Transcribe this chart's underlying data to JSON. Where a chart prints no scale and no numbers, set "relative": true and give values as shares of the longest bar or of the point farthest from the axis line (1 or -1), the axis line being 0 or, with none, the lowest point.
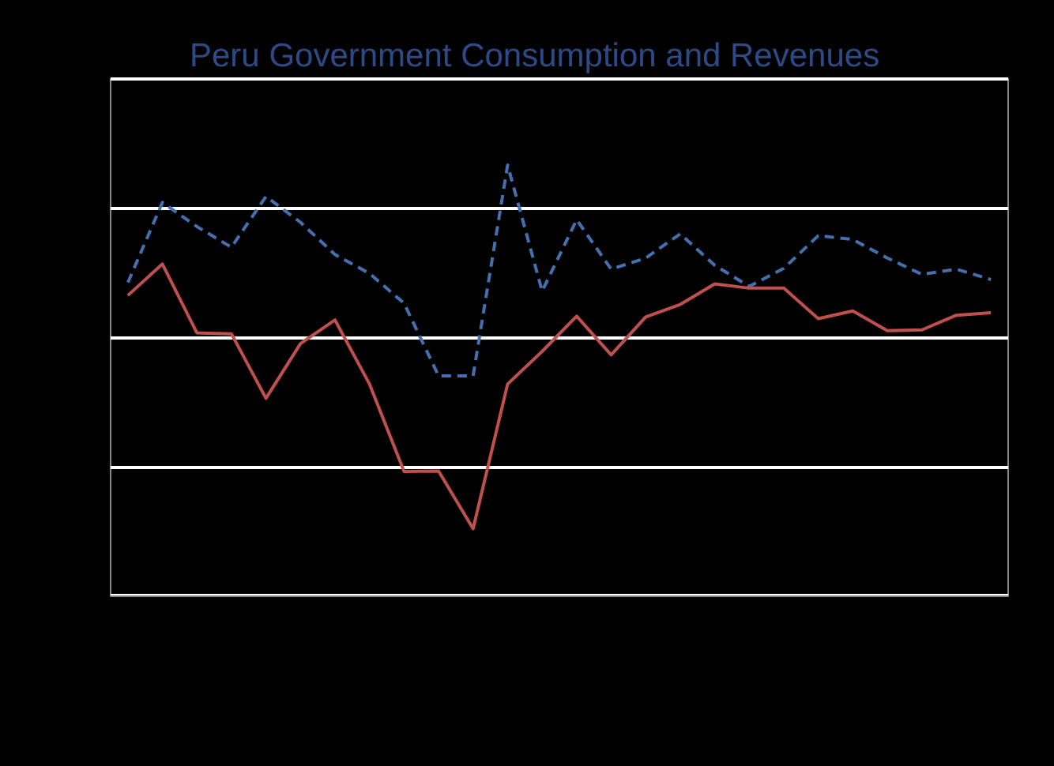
{
  "chart_data": {
    "type": "line",
    "title": "Peru Government Consumption and Revenues",
    "relative": true,
    "grid": "y",
    "categories": [
      null,
      null,
      null,
      null,
      null,
      null,
      null,
      null,
      null,
      null,
      null,
      null,
      null,
      null,
      null,
      null,
      null,
      null,
      null,
      null,
      null,
      null,
      null,
      null,
      null,
      null
    ],
    "series": [
      {
        "color": "#4470b0",
        "line_style": "dashed",
        "values": [
          0.727,
          0.913,
          0.857,
          0.809,
          0.927,
          0.867,
          0.792,
          0.748,
          0.679,
          0.51,
          0.51,
          1,
          0.707,
          0.873,
          0.758,
          0.784,
          0.84,
          0.767,
          0.718,
          0.76,
          0.836,
          0.827,
          0.784,
          0.746,
          0.758,
          0.734
        ]
      },
      {
        "color": "#c0504d",
        "line_style": "solid",
        "values": [
          0.697,
          0.77,
          0.61,
          0.608,
          0.458,
          0.585,
          0.64,
          0.491,
          0.288,
          0.289,
          0.155,
          0.491,
          0.567,
          0.649,
          0.559,
          0.647,
          0.676,
          0.724,
          0.714,
          0.714,
          0.643,
          0.661,
          0.615,
          0.617,
          0.651,
          0.657
        ]
      }
    ],
    "marker": "none"
  }
}
